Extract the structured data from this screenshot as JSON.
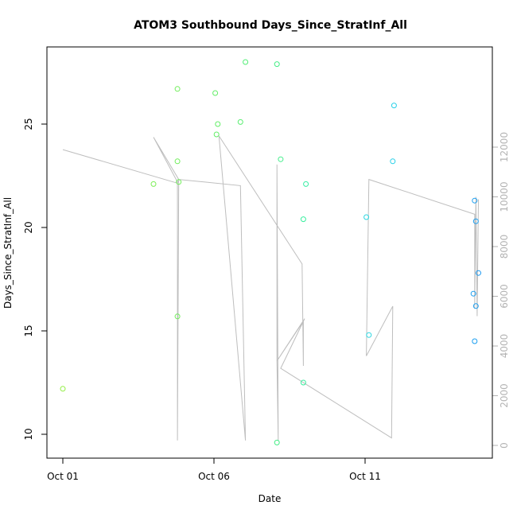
{
  "chart_data": {
    "type": "scatter",
    "title": "ATOM3 Southbound Days_Since_StratInf_All",
    "xlabel": "Date",
    "ylabel": "Days_Since_StratInf_All",
    "x_ticks": [
      "Oct 01",
      "Oct 06",
      "Oct 11"
    ],
    "xlim": [
      "2023-10-01",
      "2023-10-15"
    ],
    "ylim": [
      9.2,
      28.8
    ],
    "y_ticks": [
      10,
      15,
      20,
      25
    ],
    "y2_ticks": [
      0,
      2000,
      4000,
      6000,
      8000,
      10000,
      12000
    ],
    "y2lim": [
      -300,
      12900
    ],
    "grid": false,
    "series": [
      {
        "kind": "points",
        "points": [
          {
            "x": "2023-10-01T00:00",
            "y": 12.2,
            "color": "#90ee40"
          },
          {
            "x": "2023-10-04T00:00",
            "y": 22.1,
            "color": "#7aee55"
          },
          {
            "x": "2023-10-04T19:00",
            "y": 26.7,
            "color": "#70ee5a"
          },
          {
            "x": "2023-10-04T19:00",
            "y": 23.2,
            "color": "#70ee5a"
          },
          {
            "x": "2023-10-04T20:00",
            "y": 22.2,
            "color": "#70ee5a"
          },
          {
            "x": "2023-10-04T19:00",
            "y": 15.7,
            "color": "#70ee5a"
          },
          {
            "x": "2023-10-06T01:00",
            "y": 26.5,
            "color": "#62ee66"
          },
          {
            "x": "2023-10-06T03:00",
            "y": 25.0,
            "color": "#62ee66"
          },
          {
            "x": "2023-10-06T02:00",
            "y": 24.5,
            "color": "#62ee66"
          },
          {
            "x": "2023-10-06T21:00",
            "y": 25.1,
            "color": "#58ee70"
          },
          {
            "x": "2023-10-07T01:00",
            "y": 28.0,
            "color": "#52ee76"
          },
          {
            "x": "2023-10-08T02:00",
            "y": 27.9,
            "color": "#44ee86"
          },
          {
            "x": "2023-10-08T05:00",
            "y": 23.3,
            "color": "#44ee8c"
          },
          {
            "x": "2023-10-08T02:00",
            "y": 9.6,
            "color": "#44ee86"
          },
          {
            "x": "2023-10-08T23:00",
            "y": 20.4,
            "color": "#38ee9e"
          },
          {
            "x": "2023-10-09T01:00",
            "y": 22.1,
            "color": "#36eea4"
          },
          {
            "x": "2023-10-08T23:00",
            "y": 12.5,
            "color": "#38ee9e"
          },
          {
            "x": "2023-10-11T01:00",
            "y": 20.5,
            "color": "#2ad6e0"
          },
          {
            "x": "2023-10-11T03:00",
            "y": 14.8,
            "color": "#2ad6e0"
          },
          {
            "x": "2023-10-11T23:00",
            "y": 25.9,
            "color": "#28d0e8"
          },
          {
            "x": "2023-10-11T22:00",
            "y": 23.2,
            "color": "#28d0e8"
          },
          {
            "x": "2023-10-14T15:00",
            "y": 21.3,
            "color": "#1a9ef0"
          },
          {
            "x": "2023-10-14T16:00",
            "y": 20.3,
            "color": "#1a9ef0"
          },
          {
            "x": "2023-10-14T18:00",
            "y": 17.8,
            "color": "#1a98f0"
          },
          {
            "x": "2023-10-14T14:00",
            "y": 16.8,
            "color": "#1a9ef0"
          },
          {
            "x": "2023-10-14T16:00",
            "y": 16.2,
            "color": "#1a9ef0"
          },
          {
            "x": "2023-10-14T15:00",
            "y": 14.5,
            "color": "#1a9ef0"
          }
        ]
      },
      {
        "kind": "line",
        "axis": "right",
        "color": "#bebebe",
        "points": [
          {
            "x": "2023-10-01T00:00",
            "y": 11900
          },
          {
            "x": "2023-10-04T19:00",
            "y": 10550
          },
          {
            "x": "2023-10-04T20:00",
            "y": 10700
          },
          {
            "x": "2023-10-04T19:00",
            "y": 200
          },
          {
            "x": "2023-10-04T19:00",
            "y": 10600
          },
          {
            "x": "2023-10-04T00:00",
            "y": 12400
          },
          {
            "x": "2023-10-04T20:00",
            "y": 10700
          },
          {
            "x": "2023-10-04T19:00",
            "y": 10550
          },
          {
            "x": "2023-10-04T20:00",
            "y": 10700
          },
          {
            "x": "2023-10-06T21:00",
            "y": 10450
          },
          {
            "x": "2023-10-07T01:00",
            "y": 200
          },
          {
            "x": "2023-10-06T04:00",
            "y": 12450
          },
          {
            "x": "2023-10-08T22:00",
            "y": 7300
          },
          {
            "x": "2023-10-08T23:00",
            "y": 3200
          },
          {
            "x": "2023-10-08T23:00",
            "y": 5000
          },
          {
            "x": "2023-10-08T02:00",
            "y": 3400
          },
          {
            "x": "2023-10-08T02:00",
            "y": 11300
          },
          {
            "x": "2023-10-08T03:00",
            "y": 200
          },
          {
            "x": "2023-10-08T02:00",
            "y": 3400
          },
          {
            "x": "2023-10-09T00:00",
            "y": 5100
          },
          {
            "x": "2023-10-08T05:00",
            "y": 3100
          },
          {
            "x": "2023-10-11T21:00",
            "y": 300
          },
          {
            "x": "2023-10-11T22:00",
            "y": 5600
          },
          {
            "x": "2023-10-11T01:00",
            "y": 3600
          },
          {
            "x": "2023-10-11T03:00",
            "y": 10700
          },
          {
            "x": "2023-10-14T15:00",
            "y": 9300
          },
          {
            "x": "2023-10-14T15:00",
            "y": 5500
          },
          {
            "x": "2023-10-14T16:00",
            "y": 10000
          },
          {
            "x": "2023-10-14T17:00",
            "y": 5200
          },
          {
            "x": "2023-10-14T18:00",
            "y": 9900
          }
        ]
      }
    ]
  }
}
